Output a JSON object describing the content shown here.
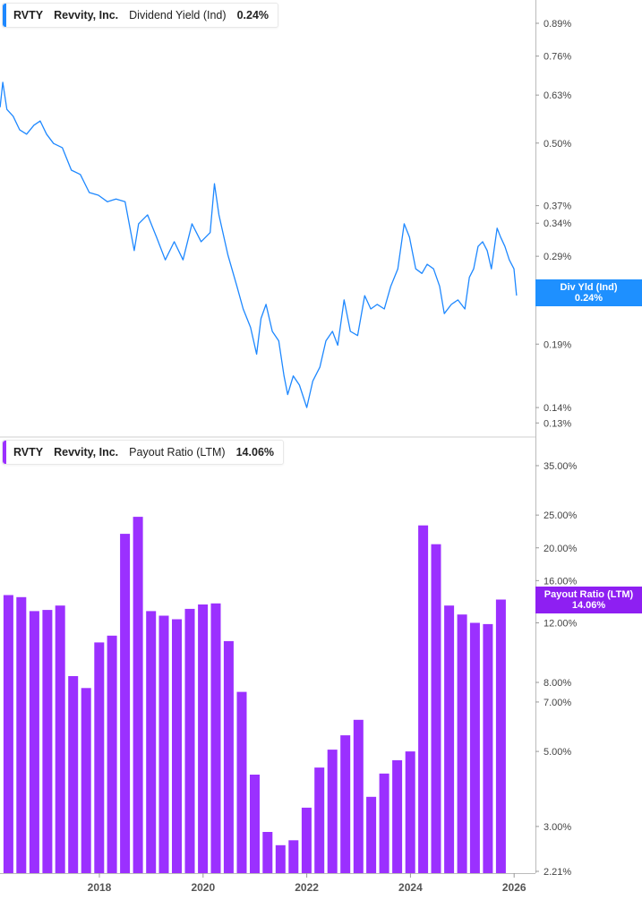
{
  "chart_data": [
    {
      "type": "line",
      "legend": {
        "ticker": "RVTY",
        "company": "Revvity, Inc.",
        "metric": "Dividend Yield (Ind)",
        "value": "0.24%"
      },
      "flag": {
        "label": "Div Yld (Ind)",
        "value": "0.24%"
      },
      "y_scale": "log",
      "ylim": [
        0.13,
        0.89
      ],
      "y_ticks": [
        "0.89%",
        "0.76%",
        "0.63%",
        "0.50%",
        "0.37%",
        "0.34%",
        "0.29%",
        "0.19%",
        "0.14%",
        "0.13%"
      ],
      "y_tick_values": [
        0.89,
        0.76,
        0.63,
        0.5,
        0.37,
        0.34,
        0.29,
        0.19,
        0.14,
        0.13
      ],
      "color": "#1e88ff",
      "series": [
        {
          "x": [
            "2016-02-01",
            "2016-02-20",
            "2016-03-20",
            "2016-05-03",
            "2016-06-18",
            "2016-08-06",
            "2016-09-27",
            "2016-11-10",
            "2016-12-25",
            "2017-02-12",
            "2017-04-15",
            "2017-06-18",
            "2017-08-20",
            "2017-10-22",
            "2017-12-25",
            "2018-02-27",
            "2018-04-28",
            "2018-07-01",
            "2018-09-03",
            "2018-10-04",
            "2018-12-06",
            "2019-02-07",
            "2019-04-10",
            "2019-06-12",
            "2019-08-13",
            "2019-10-15",
            "2019-12-18",
            "2020-02-20",
            "2020-03-21",
            "2020-04-22",
            "2020-06-24",
            "2020-08-27",
            "2020-10-10",
            "2020-12-01",
            "2021-01-13",
            "2021-02-13",
            "2021-03-20",
            "2021-05-03",
            "2021-06-18",
            "2021-07-25",
            "2021-08-20",
            "2021-09-28",
            "2021-11-10",
            "2022-01-01",
            "2022-02-12",
            "2022-04-03",
            "2022-05-16",
            "2022-07-01",
            "2022-08-07",
            "2022-09-21",
            "2022-11-04",
            "2022-12-25",
            "2023-02-13",
            "2023-03-28",
            "2023-05-12",
            "2023-07-01",
            "2023-08-15",
            "2023-10-04",
            "2023-11-18",
            "2023-12-25",
            "2024-02-07",
            "2024-03-22",
            "2024-04-28",
            "2024-06-12",
            "2024-07-25",
            "2024-08-27",
            "2024-10-16",
            "2024-12-01",
            "2025-01-19",
            "2025-02-20",
            "2025-03-22",
            "2025-04-22",
            "2025-05-24",
            "2025-06-25",
            "2025-07-25",
            "2025-09-03",
            "2025-09-28",
            "2025-10-28",
            "2025-11-28",
            "2025-12-31",
            "2026-01-18"
          ],
          "y": [
            0.594,
            0.67,
            0.588,
            0.569,
            0.533,
            0.522,
            0.545,
            0.556,
            0.522,
            0.499,
            0.489,
            0.439,
            0.43,
            0.394,
            0.389,
            0.377,
            0.382,
            0.377,
            0.298,
            0.339,
            0.354,
            0.318,
            0.285,
            0.311,
            0.285,
            0.339,
            0.311,
            0.325,
            0.411,
            0.354,
            0.292,
            0.251,
            0.225,
            0.206,
            0.181,
            0.215,
            0.23,
            0.202,
            0.193,
            0.163,
            0.149,
            0.163,
            0.156,
            0.14,
            0.159,
            0.17,
            0.193,
            0.202,
            0.189,
            0.235,
            0.202,
            0.198,
            0.24,
            0.225,
            0.23,
            0.225,
            0.251,
            0.273,
            0.339,
            0.318,
            0.273,
            0.267,
            0.279,
            0.273,
            0.251,
            0.22,
            0.23,
            0.235,
            0.225,
            0.262,
            0.273,
            0.304,
            0.311,
            0.298,
            0.273,
            0.332,
            0.318,
            0.304,
            0.285,
            0.273,
            0.24
          ]
        }
      ]
    },
    {
      "type": "bar",
      "legend": {
        "ticker": "RVTY",
        "company": "Revvity, Inc.",
        "metric": "Payout Ratio (LTM)",
        "value": "14.06%"
      },
      "flag": {
        "label": "Payout Ratio (LTM)",
        "value": "14.06%"
      },
      "y_scale": "log",
      "ylim": [
        2.21,
        35.0
      ],
      "y_ticks": [
        "35.00%",
        "25.00%",
        "20.00%",
        "16.00%",
        "12.00%",
        "8.00%",
        "7.00%",
        "5.00%",
        "3.00%",
        "2.21%"
      ],
      "y_tick_values": [
        35,
        25,
        20,
        16,
        12,
        8,
        7,
        5,
        3,
        2.21
      ],
      "color": "#9b30ff",
      "categories": [
        "2016-03-31",
        "2016-06-30",
        "2016-09-30",
        "2016-12-31",
        "2017-03-31",
        "2017-06-30",
        "2017-09-30",
        "2017-12-31",
        "2018-03-31",
        "2018-06-30",
        "2018-09-30",
        "2018-12-31",
        "2019-03-31",
        "2019-06-30",
        "2019-09-30",
        "2019-12-31",
        "2020-03-31",
        "2020-06-30",
        "2020-09-30",
        "2020-12-31",
        "2021-03-31",
        "2021-06-30",
        "2021-09-30",
        "2021-12-31",
        "2022-03-31",
        "2022-06-30",
        "2022-09-30",
        "2022-12-31",
        "2023-03-31",
        "2023-06-30",
        "2023-09-30",
        "2023-12-31",
        "2024-03-31",
        "2024-06-30",
        "2024-09-30",
        "2024-12-31",
        "2025-03-31",
        "2025-06-30",
        "2025-09-30"
      ],
      "values": [
        14.5,
        14.3,
        13.0,
        13.1,
        13.5,
        8.35,
        7.7,
        10.5,
        11.0,
        22.0,
        24.7,
        13.0,
        12.6,
        12.3,
        13.2,
        13.6,
        13.7,
        10.6,
        7.5,
        4.27,
        2.89,
        2.64,
        2.73,
        3.41,
        4.48,
        5.06,
        5.58,
        6.2,
        3.67,
        4.3,
        4.71,
        5.0,
        23.3,
        20.5,
        13.5,
        12.7,
        12.0,
        11.9,
        14.06
      ]
    }
  ],
  "x_axis": {
    "ticks": [
      "2018",
      "2020",
      "2022",
      "2024",
      "2026"
    ],
    "tick_years": [
      2018,
      2020,
      2022,
      2024,
      2026
    ]
  }
}
